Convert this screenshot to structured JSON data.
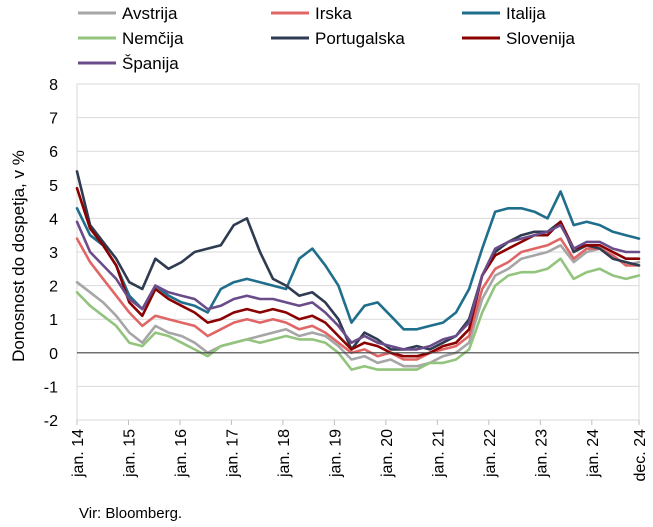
{
  "chart_data": {
    "type": "line",
    "title": "",
    "ylabel": "Donosnost do dospetja, v %",
    "xlabel": "",
    "ylim": [
      -2,
      8
    ],
    "yticks": [
      "8",
      "7",
      "6",
      "5",
      "4",
      "3",
      "2",
      "1",
      "0",
      "-1",
      "-2"
    ],
    "xticks": [
      "jan. 14",
      "jan. 15",
      "jan. 16",
      "jan. 17",
      "jan. 18",
      "jan. 19",
      "jan. 20",
      "jan. 21",
      "jan. 22",
      "jan. 23",
      "jan. 24",
      "dec. 24"
    ],
    "grid": true,
    "legend_position": "top",
    "x_start": "2014-01",
    "x_end": "2024-12",
    "x_step": "quarter",
    "series": [
      {
        "name": "Avstrija",
        "color": "#a6a6a6",
        "values": [
          2.1,
          1.8,
          1.5,
          1.1,
          0.6,
          0.3,
          0.8,
          0.6,
          0.5,
          0.3,
          0.0,
          0.2,
          0.3,
          0.4,
          0.5,
          0.6,
          0.7,
          0.5,
          0.6,
          0.5,
          0.2,
          -0.2,
          -0.1,
          -0.3,
          -0.2,
          -0.4,
          -0.4,
          -0.3,
          -0.1,
          0.0,
          0.3,
          1.6,
          2.3,
          2.5,
          2.8,
          2.9,
          3.0,
          3.2,
          2.7,
          3.0,
          3.1,
          2.9,
          2.6,
          2.7
        ]
      },
      {
        "name": "Irska",
        "color": "#e06666",
        "values": [
          3.4,
          2.7,
          2.2,
          1.7,
          1.2,
          0.8,
          1.1,
          1.0,
          0.9,
          0.8,
          0.5,
          0.7,
          0.9,
          1.0,
          0.9,
          1.0,
          0.9,
          0.7,
          0.8,
          0.6,
          0.3,
          0.0,
          0.1,
          -0.1,
          0.0,
          -0.2,
          -0.2,
          0.0,
          0.1,
          0.2,
          0.5,
          1.9,
          2.5,
          2.7,
          3.0,
          3.1,
          3.2,
          3.4,
          2.8,
          3.1,
          3.1,
          2.9,
          2.6,
          2.6
        ]
      },
      {
        "name": "Italija",
        "color": "#1f6e8c",
        "values": [
          4.3,
          3.5,
          3.2,
          2.6,
          1.7,
          1.3,
          2.0,
          1.7,
          1.5,
          1.4,
          1.2,
          1.9,
          2.1,
          2.2,
          2.1,
          2.0,
          1.9,
          2.8,
          3.1,
          2.6,
          2.0,
          0.9,
          1.4,
          1.5,
          1.1,
          0.7,
          0.7,
          0.8,
          0.9,
          1.2,
          1.9,
          3.1,
          4.2,
          4.3,
          4.3,
          4.2,
          4.0,
          4.8,
          3.8,
          3.9,
          3.8,
          3.6,
          3.5,
          3.4
        ]
      },
      {
        "name": "Nemčija",
        "color": "#93c47d",
        "values": [
          1.8,
          1.4,
          1.1,
          0.8,
          0.3,
          0.2,
          0.6,
          0.5,
          0.3,
          0.1,
          -0.1,
          0.2,
          0.3,
          0.4,
          0.3,
          0.4,
          0.5,
          0.4,
          0.4,
          0.3,
          0.0,
          -0.5,
          -0.4,
          -0.5,
          -0.5,
          -0.5,
          -0.5,
          -0.3,
          -0.3,
          -0.2,
          0.1,
          1.2,
          2.0,
          2.3,
          2.4,
          2.4,
          2.5,
          2.8,
          2.2,
          2.4,
          2.5,
          2.3,
          2.2,
          2.3
        ]
      },
      {
        "name": "Portugalska",
        "color": "#2e3b50",
        "values": [
          5.4,
          3.8,
          3.3,
          2.8,
          2.1,
          1.9,
          2.8,
          2.5,
          2.7,
          3.0,
          3.1,
          3.2,
          3.8,
          4.0,
          3.0,
          2.2,
          2.0,
          1.7,
          1.8,
          1.5,
          1.0,
          0.1,
          0.6,
          0.4,
          0.1,
          0.1,
          0.2,
          0.1,
          0.3,
          0.5,
          1.0,
          2.3,
          3.0,
          3.3,
          3.5,
          3.6,
          3.6,
          3.9,
          3.0,
          3.2,
          3.1,
          2.8,
          2.7,
          2.6
        ]
      },
      {
        "name": "Slovenija",
        "color": "#8b0000",
        "values": [
          4.9,
          3.7,
          3.2,
          2.6,
          1.5,
          1.1,
          1.9,
          1.6,
          1.4,
          1.2,
          0.9,
          1.0,
          1.2,
          1.3,
          1.2,
          1.3,
          1.2,
          1.0,
          1.1,
          0.9,
          0.5,
          0.1,
          0.3,
          0.2,
          0.0,
          -0.1,
          -0.1,
          0.0,
          0.2,
          0.3,
          0.7,
          2.3,
          2.9,
          3.1,
          3.3,
          3.5,
          3.5,
          3.9,
          3.1,
          3.2,
          3.2,
          3.0,
          2.8,
          2.8
        ]
      },
      {
        "name": "Španija",
        "color": "#6b4c8a",
        "values": [
          3.9,
          3.0,
          2.6,
          2.2,
          1.6,
          1.3,
          2.0,
          1.8,
          1.7,
          1.6,
          1.3,
          1.4,
          1.6,
          1.7,
          1.6,
          1.6,
          1.5,
          1.4,
          1.5,
          1.2,
          0.8,
          0.3,
          0.5,
          0.3,
          0.2,
          0.1,
          0.1,
          0.2,
          0.4,
          0.5,
          0.9,
          2.3,
          3.1,
          3.3,
          3.4,
          3.5,
          3.6,
          3.8,
          3.1,
          3.3,
          3.3,
          3.1,
          3.0,
          3.0
        ]
      }
    ]
  },
  "source": "Vir: Bloomberg."
}
